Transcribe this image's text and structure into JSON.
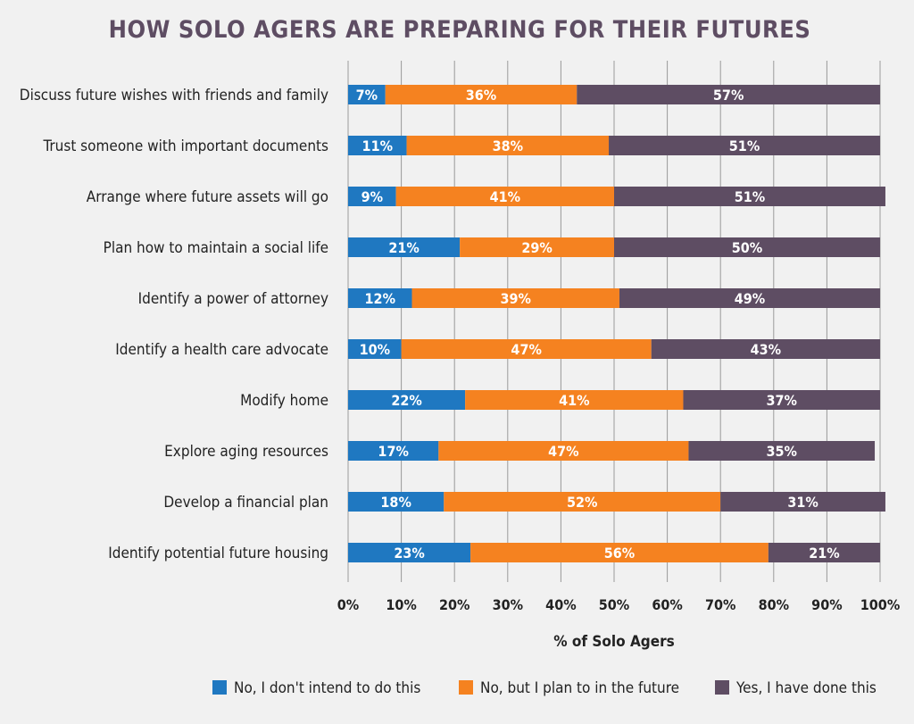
{
  "chart_data": {
    "type": "bar",
    "orientation": "horizontal",
    "stacked": true,
    "title": "HOW SOLO AGERS ARE PREPARING FOR THEIR FUTURES",
    "xlabel": "% of Solo Agers",
    "ylabel": "",
    "xlim": [
      0,
      100
    ],
    "x_ticks": [
      "0%",
      "10%",
      "20%",
      "30%",
      "40%",
      "50%",
      "60%",
      "70%",
      "80%",
      "90%",
      "100%"
    ],
    "grid": true,
    "legend_position": "bottom",
    "categories": [
      "Discuss future wishes with friends and family",
      "Trust someone with important documents",
      "Arrange where future assets will go",
      "Plan how to maintain a social life",
      "Identify a power of attorney",
      "Identify a health care advocate",
      "Modify home",
      "Explore aging resources",
      "Develop a financial plan",
      "Identify potential future housing"
    ],
    "series": [
      {
        "name": "No, I don't intend to do this",
        "color": "#1f78c1",
        "values": [
          7,
          11,
          9,
          21,
          12,
          10,
          22,
          17,
          18,
          23
        ],
        "labels": [
          "7%",
          "11%",
          "9%",
          "21%",
          "12%",
          "10%",
          "22%",
          "17%",
          "18%",
          "23%"
        ]
      },
      {
        "name": "No, but I plan to in the future",
        "color": "#f58220",
        "values": [
          36,
          38,
          41,
          29,
          39,
          47,
          41,
          47,
          52,
          56
        ],
        "labels": [
          "36%",
          "38%",
          "41%",
          "29%",
          "39%",
          "47%",
          "41%",
          "47%",
          "52%",
          "56%"
        ]
      },
      {
        "name": "Yes, I have done this",
        "color": "#5e4d63",
        "values": [
          57,
          51,
          51,
          50,
          49,
          43,
          37,
          35,
          31,
          21
        ],
        "labels": [
          "57%",
          "51%",
          "51%",
          "50%",
          "49%",
          "43%",
          "37%",
          "35%",
          "31%",
          "21%"
        ]
      }
    ]
  },
  "colors": {
    "background": "#f1f1f1",
    "title": "#5e4d63",
    "text": "#222222",
    "grid": "#9a9a9a"
  }
}
